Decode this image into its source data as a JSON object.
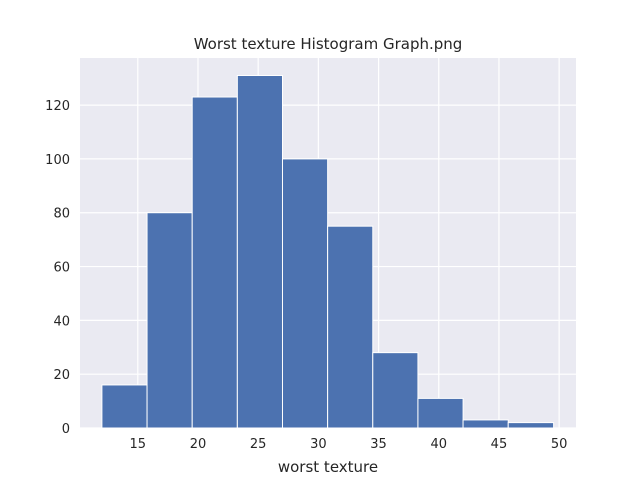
{
  "chart_data": {
    "type": "bar",
    "title": "Worst texture Histogram Graph.png",
    "xlabel": "worst texture",
    "ylabel": "",
    "bin_edges": [
      12.02,
      15.77,
      19.52,
      23.27,
      27.02,
      30.77,
      34.52,
      38.27,
      42.02,
      45.77,
      49.54
    ],
    "values": [
      16,
      80,
      123,
      131,
      100,
      75,
      28,
      11,
      3,
      2
    ],
    "xlim": [
      10.2,
      51.4
    ],
    "ylim": [
      0,
      137.5
    ],
    "xticks": [
      15,
      20,
      25,
      30,
      35,
      40,
      45,
      50
    ],
    "yticks": [
      0,
      20,
      40,
      60,
      80,
      100,
      120
    ],
    "grid": true,
    "bar_color": "#4c72b0",
    "plot_background": "#eaeaf2",
    "grid_color": "#ffffff"
  }
}
